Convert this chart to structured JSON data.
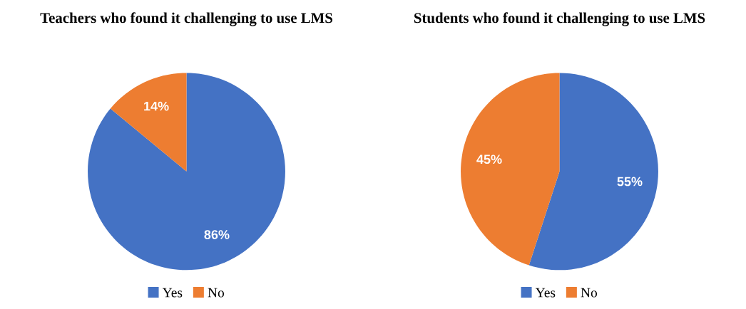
{
  "chart_data": [
    {
      "type": "pie",
      "title": "Teachers who found it challenging to use LMS",
      "categories": [
        "Yes",
        "No"
      ],
      "values": [
        86,
        14
      ],
      "colors": [
        "#4472c4",
        "#ed7d31"
      ],
      "value_labels": [
        "86%",
        "14%"
      ],
      "legend": "bottom"
    },
    {
      "type": "pie",
      "title": "Students who found it challenging to use LMS",
      "categories": [
        "Yes",
        "No"
      ],
      "values": [
        55,
        45
      ],
      "colors": [
        "#4472c4",
        "#ed7d31"
      ],
      "value_labels": [
        "55%",
        "45%"
      ],
      "legend": "bottom"
    }
  ]
}
